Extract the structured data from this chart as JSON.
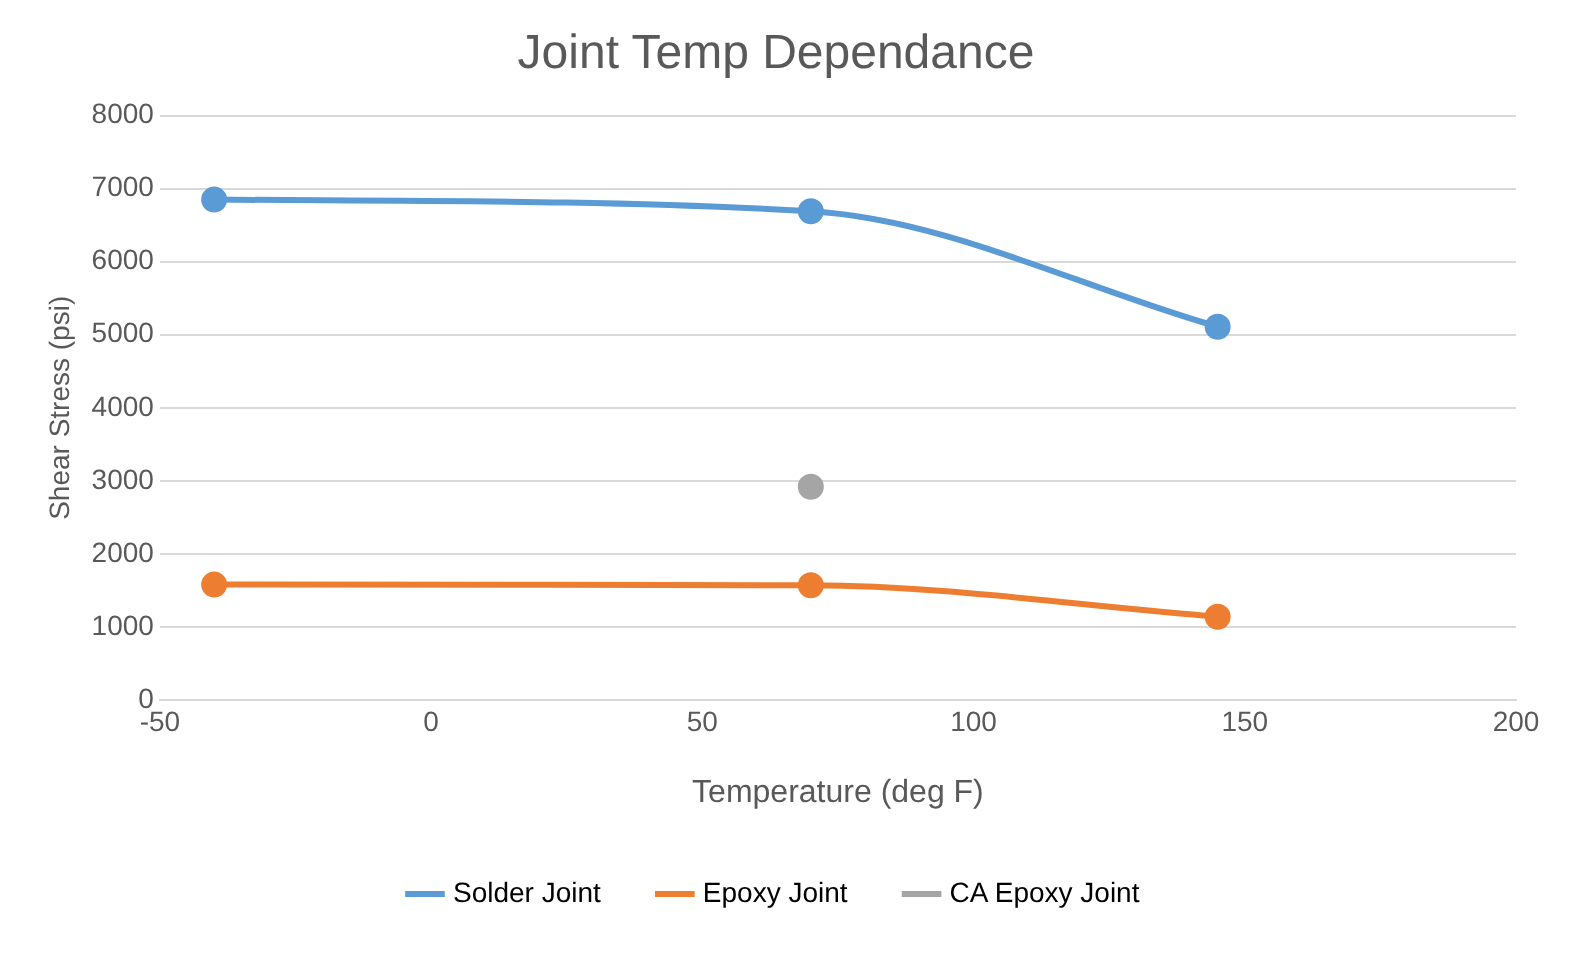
{
  "chart_data": {
    "type": "line",
    "title": "Joint Temp Dependance",
    "xlabel": "Temperature (deg F)",
    "ylabel": "Shear Stress (psi)",
    "series": [
      {
        "name": "Solder Joint",
        "color": "#5b9bd5",
        "x": [
          -40,
          70,
          145
        ],
        "values": [
          6850,
          6690,
          5110
        ]
      },
      {
        "name": "Epoxy Joint",
        "color": "#ed7d31",
        "x": [
          -40,
          70,
          145
        ],
        "values": [
          1580,
          1570,
          1140
        ]
      },
      {
        "name": "CA Epoxy Joint",
        "color": "#a5a5a5",
        "type": "scatter",
        "x": [
          70
        ],
        "values": [
          2920
        ]
      }
    ],
    "xlim": [
      -50,
      200
    ],
    "xticks": [
      -50,
      0,
      50,
      100,
      150,
      200
    ],
    "ylim": [
      0,
      8000
    ],
    "yticks": [
      0,
      1000,
      2000,
      3000,
      4000,
      5000,
      6000,
      7000,
      8000
    ],
    "grid": "y",
    "legend": "bottom",
    "marker": "circle",
    "line_style": "solid"
  }
}
